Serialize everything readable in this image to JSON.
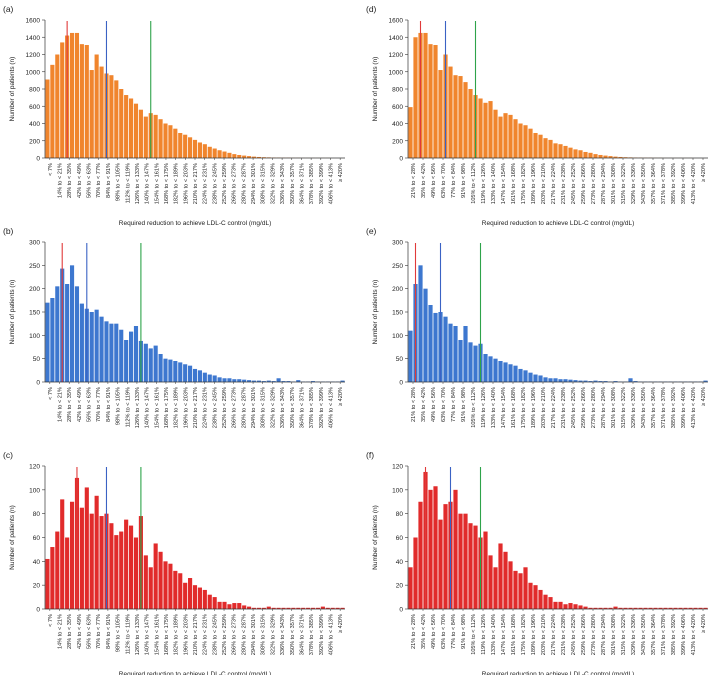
{
  "chart_data": [
    {
      "panel": "(a)",
      "type": "bar",
      "color": "#f0852d",
      "xlabel": "Required reduction to achieve LDL-C control (mg/dL)",
      "ylabel": "Number of patients (n)",
      "ylim": [
        0,
        1600
      ],
      "yticks": [
        "0",
        "200",
        "400",
        "600",
        "800",
        "1000",
        "1200",
        "1400",
        "1600"
      ],
      "tick_labels": [
        "< 7%",
        "14% to < 21%",
        "28% to < 35%",
        "42% to < 49%",
        "56% to < 63%",
        "70% to < 77%",
        "84% to < 91%",
        "98% to < 105%",
        "112% to < 119%",
        "126% to < 133%",
        "140% to < 147%",
        "154% to < 161%",
        "168% to < 175%",
        "182% to < 189%",
        "196% to < 203%",
        "210% to < 217%",
        "224% to < 231%",
        "238% to < 245%",
        "252% to < 259%",
        "266% to < 273%",
        "280% to < 287%",
        "294% to < 301%",
        "308% to < 315%",
        "322% to < 329%",
        "336% to < 343%",
        "350% to < 357%",
        "364% to < 371%",
        "378% to < 385%",
        "392% to < 399%",
        "406% to < 413%",
        "≥ 420%"
      ],
      "values": [
        910,
        1080,
        1200,
        1340,
        1420,
        1450,
        1450,
        1320,
        1310,
        1020,
        1200,
        1060,
        980,
        960,
        900,
        800,
        730,
        690,
        630,
        560,
        480,
        520,
        500,
        450,
        400,
        380,
        340,
        290,
        270,
        240,
        210,
        180,
        160,
        130,
        110,
        90,
        75,
        60,
        45,
        35,
        28,
        22,
        16,
        12,
        9,
        7,
        5,
        4,
        3,
        3,
        2,
        2,
        1,
        1,
        1,
        1,
        1,
        1,
        0,
        0,
        0
      ],
      "reference_lines": [
        {
          "color": "#e03a3a",
          "bin": 4.5
        },
        {
          "color": "#3a62c4",
          "bin": 12.5
        },
        {
          "color": "#2ea34a",
          "bin": 21.5
        }
      ]
    },
    {
      "panel": "(b)",
      "type": "bar",
      "color": "#3d77cf",
      "xlabel": "",
      "ylabel": "Number of patients (n)",
      "ylim": [
        0,
        300
      ],
      "yticks": [
        "0",
        "50",
        "100",
        "150",
        "200",
        "250",
        "300"
      ],
      "tick_labels": [
        "< 7%",
        "14% to < 21%",
        "28% to < 35%",
        "42% to < 49%",
        "56% to < 63%",
        "70% to < 77%",
        "84% to < 91%",
        "98% to < 105%",
        "112% to < 119%",
        "126% to < 133%",
        "140% to < 147%",
        "154% to < 161%",
        "168% to < 175%",
        "182% to < 189%",
        "196% to < 203%",
        "210% to < 217%",
        "224% to < 231%",
        "238% to < 245%",
        "252% to < 259%",
        "266% to < 273%",
        "280% to < 287%",
        "294% to < 301%",
        "308% to < 315%",
        "322% to < 329%",
        "336% to < 343%",
        "350% to < 357%",
        "364% to < 371%",
        "378% to < 385%",
        "392% to < 399%",
        "406% to < 413%",
        "≥ 420%"
      ],
      "values": [
        170,
        180,
        205,
        243,
        210,
        250,
        205,
        168,
        157,
        150,
        155,
        140,
        130,
        125,
        125,
        112,
        90,
        108,
        120,
        88,
        82,
        72,
        78,
        60,
        50,
        48,
        45,
        42,
        38,
        35,
        28,
        25,
        20,
        16,
        14,
        10,
        8,
        8,
        6,
        6,
        5,
        4,
        3,
        3,
        2,
        3,
        2,
        8,
        2,
        2,
        1,
        4,
        1,
        1,
        2,
        1,
        1,
        1,
        1,
        1,
        3
      ],
      "reference_lines": [
        {
          "color": "#e03a3a",
          "bin": 3.5
        },
        {
          "color": "#3a62c4",
          "bin": 8.5
        },
        {
          "color": "#2ea34a",
          "bin": 19.5
        }
      ]
    },
    {
      "panel": "(c)",
      "type": "bar",
      "color": "#e12b2b",
      "xlabel": "Required reduction to achieve LDL-C control (mg/dL)",
      "ylabel": "Number of patients (n)",
      "ylim": [
        0,
        120
      ],
      "yticks": [
        "0",
        "20",
        "40",
        "60",
        "80",
        "100",
        "120"
      ],
      "tick_labels": [
        "< 7%",
        "14% to < 21%",
        "28% to < 35%",
        "42% to < 49%",
        "56% to < 63%",
        "70% to < 77%",
        "84% to < 91%",
        "98% to < 105%",
        "112% to < 119%",
        "126% to < 133%",
        "140% to < 147%",
        "154% to < 161%",
        "168% to < 175%",
        "182% to < 189%",
        "196% to < 203%",
        "210% to < 217%",
        "224% to < 231%",
        "238% to < 245%",
        "252% to < 259%",
        "266% to < 273%",
        "280% to < 287%",
        "294% to < 301%",
        "308% to < 315%",
        "322% to < 329%",
        "336% to < 343%",
        "350% to < 357%",
        "364% to < 371%",
        "378% to < 385%",
        "392% to < 399%",
        "406% to < 413%",
        "≥ 420%"
      ],
      "values": [
        42,
        52,
        65,
        92,
        60,
        90,
        110,
        85,
        102,
        80,
        95,
        78,
        80,
        72,
        62,
        65,
        75,
        70,
        60,
        78,
        45,
        35,
        55,
        48,
        40,
        38,
        32,
        30,
        22,
        26,
        20,
        18,
        16,
        12,
        10,
        6,
        6,
        4,
        5,
        5,
        3,
        2,
        1,
        1,
        1,
        2,
        1,
        1,
        1,
        1,
        1,
        1,
        1,
        1,
        1,
        1,
        2,
        1,
        1,
        1,
        1
      ],
      "reference_lines": [
        {
          "color": "#e03a3a",
          "bin": 6.5
        },
        {
          "color": "#3a62c4",
          "bin": 12.5
        },
        {
          "color": "#2ea34a",
          "bin": 19.5
        }
      ]
    },
    {
      "panel": "(d)",
      "type": "bar",
      "color": "#f0852d",
      "xlabel": "Required reduction to achieve LDL-C control (mg/dL)",
      "ylabel": "Number of patients (n)",
      "ylim": [
        0,
        1600
      ],
      "yticks": [
        "0",
        "200",
        "400",
        "600",
        "800",
        "1000",
        "1200",
        "1400",
        "1600"
      ],
      "tick_labels": [
        "21% to < 28%",
        "35% to < 42%",
        "49% to < 56%",
        "63% to < 70%",
        "77% to < 84%",
        "91% to < 98%",
        "105% to < 112%",
        "119% to < 126%",
        "133% to < 140%",
        "147% to < 154%",
        "161% to < 168%",
        "175% to < 182%",
        "189% to < 196%",
        "203% to < 210%",
        "217% to < 224%",
        "231% to < 238%",
        "245% to < 252%",
        "259% to < 266%",
        "273% to < 280%",
        "287% to < 294%",
        "301% to < 308%",
        "315% to < 322%",
        "329% to < 336%",
        "343% to < 350%",
        "357% to < 364%",
        "371% to < 378%",
        "385% to < 392%",
        "399% to < 406%",
        "413% to < 420%",
        "≥ 420%"
      ],
      "values": [
        590,
        1400,
        1450,
        1450,
        1320,
        1310,
        1020,
        1200,
        1060,
        960,
        950,
        880,
        800,
        730,
        690,
        640,
        660,
        560,
        480,
        520,
        500,
        450,
        400,
        380,
        340,
        290,
        270,
        230,
        210,
        170,
        160,
        140,
        120,
        100,
        90,
        70,
        60,
        45,
        35,
        28,
        22,
        16,
        12,
        9,
        7,
        5,
        4,
        3,
        3,
        2,
        2,
        1,
        1,
        1,
        1,
        1,
        1,
        0,
        0,
        0
      ],
      "reference_lines": [
        {
          "color": "#e03a3a",
          "bin": 2.5
        },
        {
          "color": "#3a62c4",
          "bin": 7.5
        },
        {
          "color": "#2ea34a",
          "bin": 13.5
        }
      ]
    },
    {
      "panel": "(e)",
      "type": "bar",
      "color": "#3d77cf",
      "xlabel": "",
      "ylabel": "Number of patients (n)",
      "ylim": [
        0,
        300
      ],
      "yticks": [
        "0",
        "50",
        "100",
        "150",
        "200",
        "250",
        "300"
      ],
      "tick_labels": [
        "21% to < 28%",
        "35% to < 42%",
        "49% to < 56%",
        "63% to < 70%",
        "77% to < 84%",
        "91% to < 98%",
        "105% to < 112%",
        "119% to < 126%",
        "133% to < 140%",
        "147% to < 154%",
        "161% to < 168%",
        "175% to < 182%",
        "189% to < 196%",
        "203% to < 210%",
        "217% to < 224%",
        "231% to < 238%",
        "245% to < 252%",
        "259% to < 266%",
        "273% to < 280%",
        "287% to < 294%",
        "301% to < 308%",
        "315% to < 322%",
        "329% to < 336%",
        "343% to < 350%",
        "357% to < 364%",
        "371% to < 378%",
        "385% to < 392%",
        "399% to < 406%",
        "413% to < 420%",
        "≥ 420%"
      ],
      "values": [
        110,
        210,
        250,
        200,
        165,
        148,
        150,
        140,
        125,
        120,
        90,
        120,
        85,
        78,
        82,
        60,
        55,
        50,
        45,
        42,
        38,
        35,
        28,
        25,
        20,
        16,
        14,
        10,
        8,
        8,
        6,
        6,
        5,
        4,
        3,
        3,
        2,
        3,
        2,
        2,
        1,
        2,
        1,
        1,
        8,
        2,
        1,
        1,
        1,
        1,
        1,
        1,
        1,
        1,
        1,
        1,
        1,
        1,
        1,
        3
      ],
      "reference_lines": [
        {
          "color": "#e03a3a",
          "bin": 1.5
        },
        {
          "color": "#3a62c4",
          "bin": 6.5
        },
        {
          "color": "#2ea34a",
          "bin": 14.5
        }
      ]
    },
    {
      "panel": "(f)",
      "type": "bar",
      "color": "#e12b2b",
      "xlabel": "Required reduction to achieve LDL-C control (mg/dL)",
      "ylabel": "Number of patients (n)",
      "ylim": [
        0,
        120
      ],
      "yticks": [
        "0",
        "20",
        "40",
        "60",
        "80",
        "100",
        "120"
      ],
      "tick_labels": [
        "21% to < 28%",
        "35% to < 42%",
        "49% to < 56%",
        "63% to < 70%",
        "77% to < 84%",
        "91% to < 98%",
        "105% to < 112%",
        "119% to < 126%",
        "133% to < 140%",
        "147% to < 154%",
        "161% to < 168%",
        "175% to < 182%",
        "189% to < 196%",
        "203% to < 210%",
        "217% to < 224%",
        "231% to < 238%",
        "245% to < 252%",
        "259% to < 266%",
        "273% to < 280%",
        "287% to < 294%",
        "301% to < 308%",
        "315% to < 322%",
        "329% to < 336%",
        "343% to < 350%",
        "357% to < 364%",
        "371% to < 378%",
        "385% to < 392%",
        "399% to < 406%",
        "413% to < 420%",
        "≥ 420%"
      ],
      "values": [
        35,
        60,
        90,
        115,
        100,
        103,
        75,
        88,
        90,
        100,
        80,
        80,
        72,
        70,
        60,
        65,
        45,
        35,
        55,
        48,
        40,
        32,
        30,
        35,
        22,
        20,
        16,
        12,
        10,
        6,
        6,
        4,
        5,
        4,
        3,
        2,
        1,
        1,
        1,
        1,
        1,
        2,
        1,
        1,
        1,
        1,
        1,
        1,
        1,
        1,
        1,
        1,
        1,
        1,
        1,
        1,
        1,
        1,
        1,
        1
      ],
      "reference_lines": [
        {
          "color": "#e03a3a",
          "bin": 3.5
        },
        {
          "color": "#3a62c4",
          "bin": 8.5
        },
        {
          "color": "#2ea34a",
          "bin": 14.5
        }
      ]
    }
  ]
}
